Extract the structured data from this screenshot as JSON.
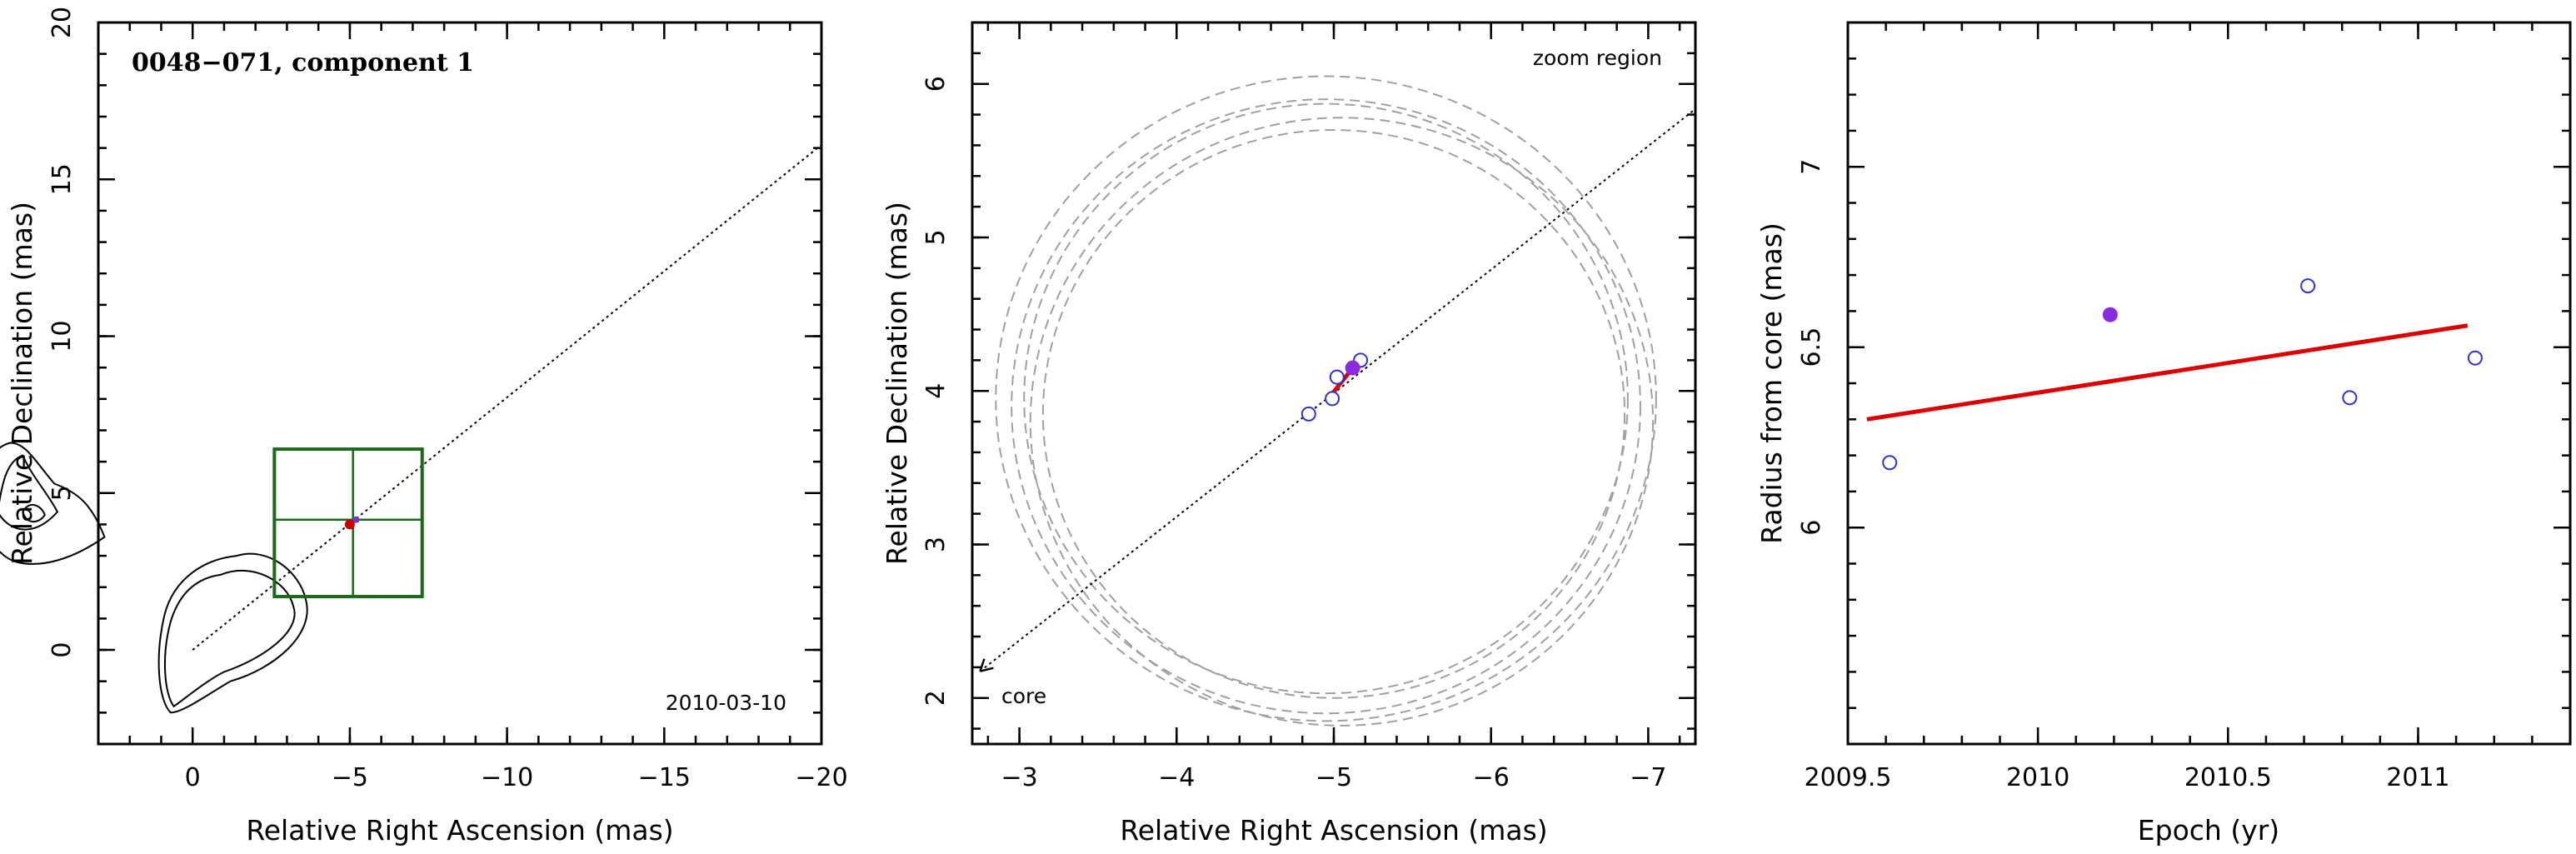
{
  "chart_data": [
    {
      "type": "contour",
      "title": "0048−071, component 1",
      "date": "2010-03-10",
      "xlabel": "Relative Right Ascension (mas)",
      "ylabel": "Relative Declination (mas)",
      "xlim": [
        3,
        -20
      ],
      "ylim": [
        -3,
        20
      ],
      "xticks": [
        0,
        -5,
        -10,
        -15,
        -20
      ],
      "yticks": [
        0,
        5,
        10,
        15,
        20
      ],
      "xticklabels": [
        "0",
        "−5",
        "−10",
        "−15",
        "−20"
      ],
      "yticklabels": [
        "0",
        "5",
        "10",
        "15",
        "20"
      ],
      "zoom_box": {
        "x": [
          -2.6,
          -7.3
        ],
        "y": [
          1.7,
          6.4
        ],
        "cross": [
          -5.1,
          4.15
        ],
        "color": "#1a6a1a"
      },
      "component": {
        "x": -5.0,
        "y": 4.0,
        "color": "#cc0000"
      },
      "jet_direction": {
        "from": [
          0,
          0
        ],
        "to": [
          -20,
          16.1
        ]
      }
    },
    {
      "type": "scatter",
      "annotation_zoom": "zoom region",
      "annotation_core": "core",
      "xlabel": "Relative Right Ascension (mas)",
      "ylabel": "Relative Declination (mas)",
      "xlim": [
        -2.7,
        -7.3
      ],
      "ylim": [
        1.7,
        6.4
      ],
      "xticks": [
        -3,
        -4,
        -5,
        -6,
        -7
      ],
      "yticks": [
        2,
        3,
        4,
        5,
        6
      ],
      "xticklabels": [
        "−3",
        "−4",
        "−5",
        "−6",
        "−7"
      ],
      "yticklabels": [
        "2",
        "3",
        "4",
        "5",
        "6"
      ],
      "points_open": [
        [
          -4.84,
          3.85
        ],
        [
          -4.99,
          3.95
        ],
        [
          -5.02,
          4.09
        ],
        [
          -5.17,
          4.2
        ]
      ],
      "point_filled": [
        -5.12,
        4.15
      ],
      "fit_segment": [
        [
          -4.95,
          3.93
        ],
        [
          -5.12,
          4.15
        ]
      ],
      "beam_circles": [
        {
          "cx": -4.95,
          "cy": 3.95,
          "r": 2.1
        },
        {
          "cx": -4.95,
          "cy": 3.9,
          "r": 2.0
        },
        {
          "cx": -4.95,
          "cy": 3.95,
          "r": 1.92
        },
        {
          "cx": -5.0,
          "cy": 3.85,
          "r": 1.85
        },
        {
          "cx": -5.05,
          "cy": 3.8,
          "r": 1.98
        }
      ],
      "colors": {
        "open": "#3333cc",
        "filled": "#8a2be2",
        "fit": "#dd0000"
      }
    },
    {
      "type": "scatter",
      "xlabel": "Epoch (yr)",
      "ylabel": "Radius from core (mas)",
      "xlim": [
        2009.5,
        2011.4
      ],
      "ylim": [
        5.4,
        7.4
      ],
      "xticks": [
        2009.5,
        2010,
        2010.5,
        2011
      ],
      "yticks": [
        6,
        6.5,
        7
      ],
      "xticklabels": [
        "2009.5",
        "2010",
        "2010.5",
        "2011"
      ],
      "yticklabels": [
        "6",
        "6.5",
        "7"
      ],
      "points_open": [
        [
          2009.61,
          6.18
        ],
        [
          2010.71,
          6.67
        ],
        [
          2010.82,
          6.36
        ],
        [
          2011.15,
          6.47
        ]
      ],
      "point_filled": [
        2010.19,
        6.59
      ],
      "fit_line": [
        [
          2009.55,
          6.3
        ],
        [
          2011.13,
          6.56
        ]
      ],
      "colors": {
        "open": "#3333cc",
        "filled": "#8a2be2",
        "fit": "#dd0000"
      }
    }
  ]
}
